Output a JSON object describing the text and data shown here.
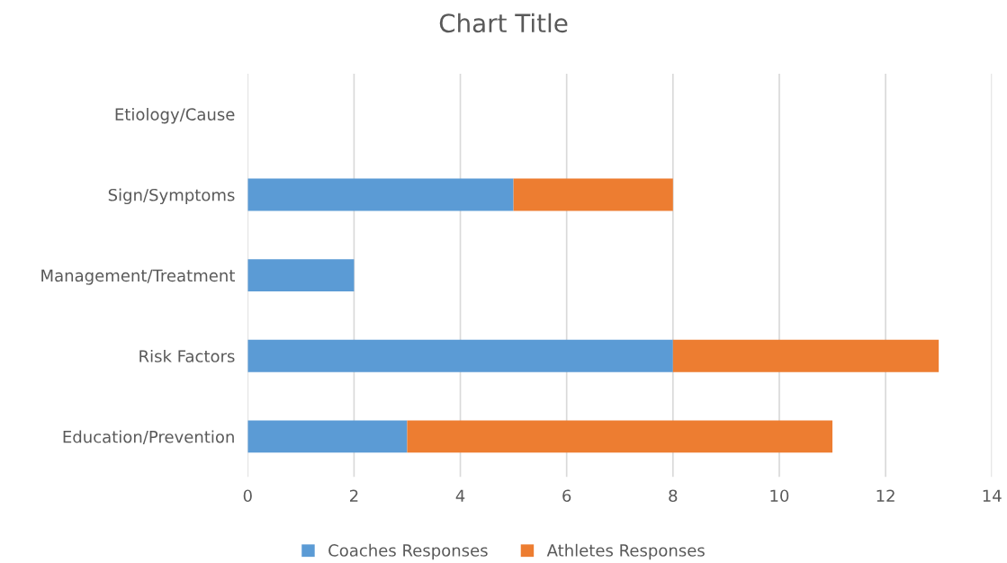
{
  "chart_data": {
    "type": "bar",
    "orientation": "horizontal",
    "stacked": true,
    "title": "Chart Title",
    "categories": [
      "Etiology/Cause",
      "Sign/Symptoms",
      "Management/Treatment",
      "Risk Factors",
      "Education/Prevention"
    ],
    "series": [
      {
        "name": "Coaches Responses",
        "color": "#5b9bd5",
        "values": [
          0,
          5,
          2,
          8,
          3
        ]
      },
      {
        "name": "Athletes Responses",
        "color": "#ed7d31",
        "values": [
          0,
          3,
          0,
          5,
          8
        ]
      }
    ],
    "xlim": [
      0,
      14
    ],
    "xticks": [
      0,
      2,
      4,
      6,
      8,
      10,
      12,
      14
    ],
    "grid": "x",
    "legend": "bottom"
  }
}
